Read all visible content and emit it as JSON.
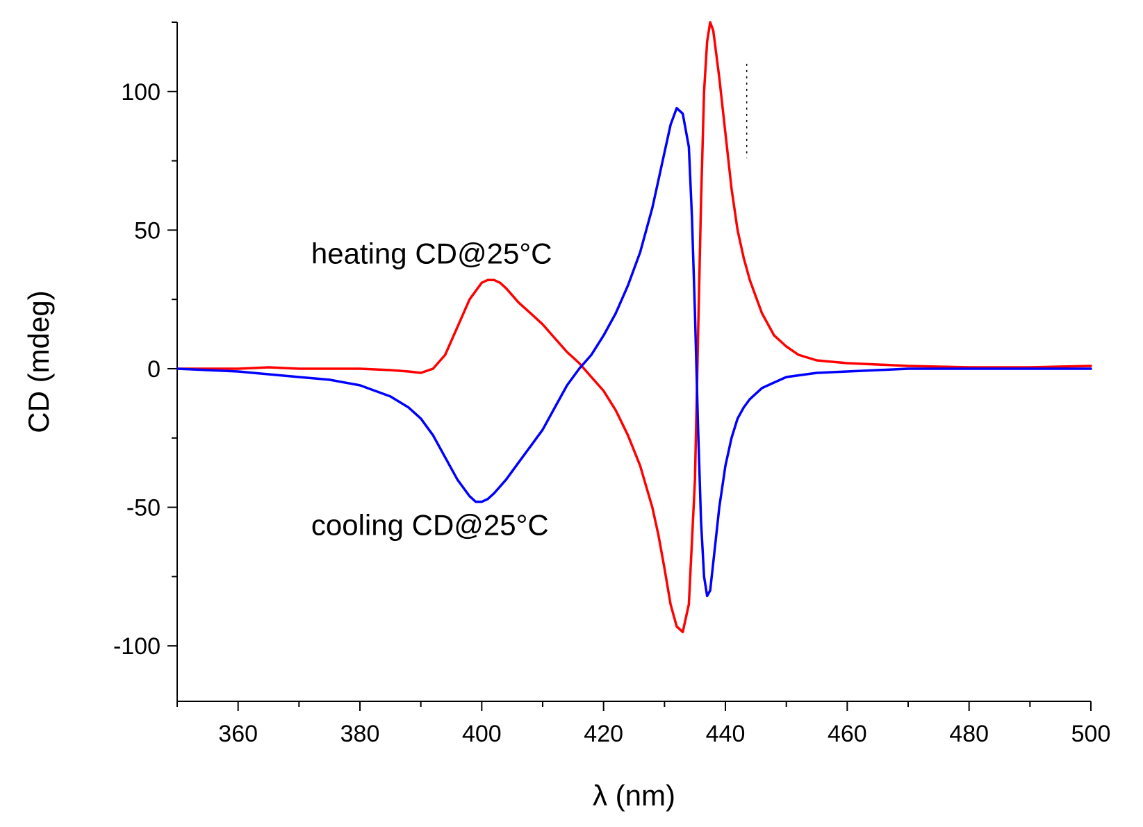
{
  "chart_data": {
    "type": "line",
    "title": "",
    "xlabel": "λ (nm)",
    "ylabel": "CD (mdeg)",
    "xlim": [
      350,
      500
    ],
    "ylim": [
      -120,
      125
    ],
    "x_ticks": [
      360,
      380,
      400,
      420,
      440,
      460,
      480,
      500
    ],
    "x_tick_labels": [
      "360",
      "380",
      "400",
      "420",
      "440",
      "460",
      "480",
      "500"
    ],
    "y_ticks": [
      -100,
      -50,
      0,
      50,
      100
    ],
    "y_tick_labels": [
      "-100",
      "-50",
      "0",
      "50",
      "100"
    ],
    "grid": false,
    "legend": "none",
    "annotations": [
      {
        "text": "heating CD@25°C",
        "x": 372,
        "y": 38
      },
      {
        "text": "cooling CD@25°C",
        "x": 372,
        "y": -60
      }
    ],
    "series": [
      {
        "name": "heating CD@25°C",
        "color": "#ff0000",
        "x": [
          350,
          355,
          360,
          365,
          370,
          375,
          380,
          385,
          388,
          390,
          392,
          394,
          396,
          398,
          400,
          401,
          402,
          403,
          404,
          406,
          408,
          410,
          412,
          414,
          416,
          418,
          420,
          422,
          424,
          426,
          428,
          429,
          430,
          431,
          432,
          433,
          434,
          435,
          435.5,
          436,
          436.5,
          437,
          437.5,
          438,
          439,
          440,
          441,
          442,
          443,
          444,
          445,
          446,
          448,
          450,
          452,
          455,
          460,
          465,
          470,
          480,
          490,
          500
        ],
        "y": [
          0,
          0,
          0,
          0.5,
          0,
          0,
          0,
          -0.5,
          -1,
          -1.5,
          0,
          5,
          15,
          25,
          31,
          32,
          32,
          31,
          29,
          24,
          20,
          16,
          11,
          6,
          2,
          -3,
          -8,
          -15,
          -24,
          -35,
          -50,
          -60,
          -72,
          -85,
          -93,
          -95,
          -85,
          -40,
          10,
          60,
          100,
          118,
          125,
          122,
          105,
          85,
          65,
          50,
          40,
          32,
          26,
          20,
          12,
          8,
          5,
          3,
          2,
          1.5,
          1,
          0.5,
          0.5,
          1
        ]
      },
      {
        "name": "cooling CD@25°C",
        "color": "#0000ff",
        "x": [
          350,
          355,
          360,
          365,
          370,
          375,
          380,
          385,
          388,
          390,
          392,
          394,
          396,
          398,
          399,
          400,
          401,
          402,
          404,
          406,
          408,
          410,
          412,
          414,
          416,
          418,
          420,
          422,
          424,
          426,
          428,
          429,
          430,
          431,
          432,
          433,
          434,
          434.5,
          435,
          435.5,
          436,
          436.5,
          437,
          437.5,
          438,
          439,
          440,
          441,
          442,
          443,
          444,
          445,
          446,
          448,
          450,
          455,
          460,
          465,
          470,
          480,
          490,
          500
        ],
        "y": [
          0,
          -0.5,
          -1,
          -2,
          -3,
          -4,
          -6,
          -10,
          -14,
          -18,
          -24,
          -32,
          -40,
          -46,
          -48,
          -48,
          -47,
          -45,
          -40,
          -34,
          -28,
          -22,
          -14,
          -6,
          0,
          5,
          12,
          20,
          30,
          42,
          58,
          68,
          78,
          88,
          94,
          92,
          80,
          55,
          20,
          -20,
          -55,
          -75,
          -82,
          -80,
          -70,
          -50,
          -35,
          -25,
          -18,
          -14,
          -11,
          -9,
          -7,
          -5,
          -3,
          -1.5,
          -1,
          -0.5,
          0,
          0,
          0,
          0
        ]
      }
    ],
    "dotted_marker": {
      "x": 443.5,
      "y_range": [
        76,
        110
      ]
    }
  }
}
